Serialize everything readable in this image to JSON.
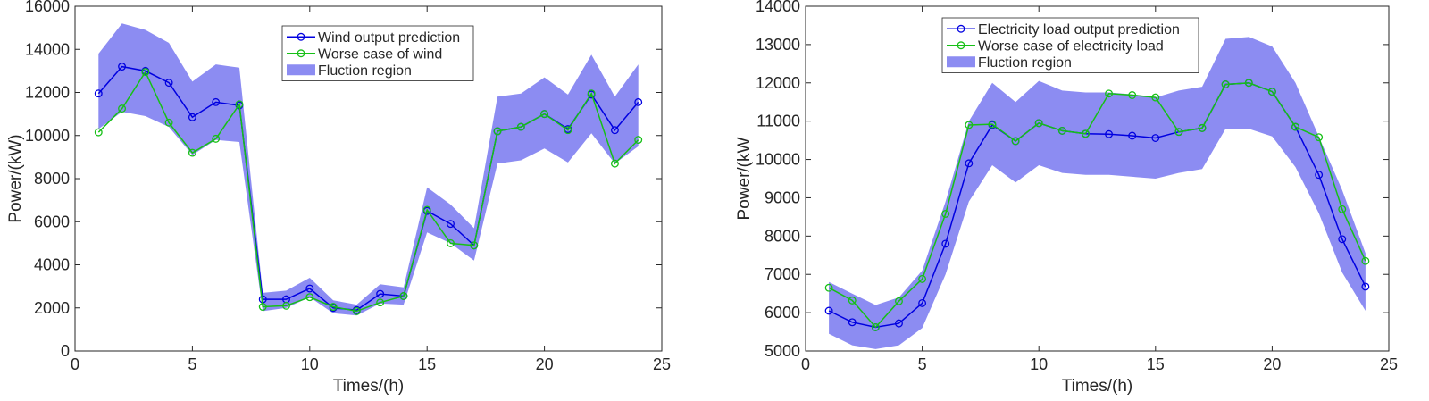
{
  "chart_data": [
    {
      "type": "line",
      "xlabel": "Times/(h)",
      "ylabel": "Power/(kW)",
      "xlim": [
        0,
        25
      ],
      "ylim": [
        0,
        16000
      ],
      "xticks": [
        0,
        5,
        10,
        15,
        20,
        25
      ],
      "yticks": [
        0,
        2000,
        4000,
        6000,
        8000,
        10000,
        12000,
        14000,
        16000
      ],
      "grid": false,
      "legend_position": "top-center",
      "x": [
        1,
        2,
        3,
        4,
        5,
        6,
        7,
        8,
        9,
        10,
        11,
        12,
        13,
        14,
        15,
        16,
        17,
        18,
        19,
        20,
        21,
        22,
        23,
        24
      ],
      "series": [
        {
          "name": "Wind output prediction",
          "color": "#0000e0",
          "marker": "circle",
          "values": [
            11950,
            13200,
            13000,
            12450,
            10850,
            11550,
            11400,
            2400,
            2400,
            2900,
            2000,
            1900,
            2650,
            2550,
            6500,
            5900,
            4900,
            10200,
            10400,
            11000,
            10300,
            11900,
            10250,
            11550
          ]
        },
        {
          "name": "Worse case of wind",
          "color": "#16c016",
          "marker": "circle",
          "values": [
            10150,
            11250,
            12950,
            10600,
            9200,
            9850,
            11450,
            2050,
            2100,
            2500,
            2050,
            1850,
            2250,
            2550,
            6550,
            5000,
            4900,
            10200,
            10400,
            11000,
            10250,
            11950,
            8700,
            9800
          ]
        },
        {
          "name": "Fluction region",
          "type": "area",
          "color": "#8c8cf2",
          "upper": [
            13800,
            15200,
            14900,
            14300,
            12500,
            13300,
            13150,
            2700,
            2800,
            3400,
            2350,
            2150,
            3100,
            2950,
            7600,
            6800,
            5700,
            11800,
            11950,
            12700,
            11900,
            13750,
            11800,
            13300
          ],
          "lower": [
            10300,
            11100,
            10900,
            10400,
            9100,
            9800,
            9700,
            1850,
            2000,
            2500,
            1750,
            1650,
            2200,
            2150,
            5500,
            5000,
            4200,
            8700,
            8850,
            9400,
            8750,
            10100,
            8700,
            9500
          ]
        }
      ]
    },
    {
      "type": "line",
      "xlabel": "Times/(h)",
      "ylabel": "Power/(kW",
      "xlim": [
        0,
        25
      ],
      "ylim": [
        5000,
        14000
      ],
      "xticks": [
        0,
        5,
        10,
        15,
        20,
        25
      ],
      "yticks": [
        5000,
        6000,
        7000,
        8000,
        9000,
        10000,
        11000,
        12000,
        13000,
        14000
      ],
      "grid": false,
      "legend_position": "top-center",
      "x": [
        1,
        2,
        3,
        4,
        5,
        6,
        7,
        8,
        9,
        10,
        11,
        12,
        13,
        14,
        15,
        16,
        17,
        18,
        19,
        20,
        21,
        22,
        23,
        24
      ],
      "series": [
        {
          "name": "Electricity load output prediction",
          "color": "#0000e0",
          "marker": "circle",
          "values": [
            6050,
            5750,
            5620,
            5720,
            6250,
            7800,
            9900,
            10900,
            10480,
            10950,
            10750,
            10670,
            10660,
            10620,
            10560,
            10720,
            10820,
            11960,
            12000,
            11770,
            10850,
            9600,
            7920,
            6680
          ]
        },
        {
          "name": "Worse case of electricity load",
          "color": "#16c016",
          "marker": "circle",
          "values": [
            6650,
            6320,
            5620,
            6300,
            6880,
            8580,
            10900,
            10920,
            10480,
            10950,
            10750,
            10670,
            11720,
            11680,
            11620,
            10720,
            10820,
            11960,
            12000,
            11770,
            10850,
            10580,
            8700,
            7350
          ]
        },
        {
          "name": "Fluction region",
          "type": "area",
          "color": "#8c8cf2",
          "upper": [
            6800,
            6500,
            6200,
            6400,
            7100,
            8900,
            11000,
            12000,
            11500,
            12050,
            11800,
            11750,
            11750,
            11700,
            11620,
            11800,
            11900,
            13150,
            13200,
            12950,
            12000,
            10600,
            9200,
            7550
          ]
        },
        {
          "name": "",
          "type": "area_lower_helper",
          "color": "#8c8cf2",
          "values": [
            5450,
            5150,
            5050,
            5150,
            5600,
            7000,
            8900,
            9850,
            9400,
            9850,
            9650,
            9600,
            9600,
            9550,
            9500,
            9650,
            9750,
            10800,
            10800,
            10600,
            9800,
            8600,
            7050,
            6050
          ]
        }
      ]
    }
  ]
}
